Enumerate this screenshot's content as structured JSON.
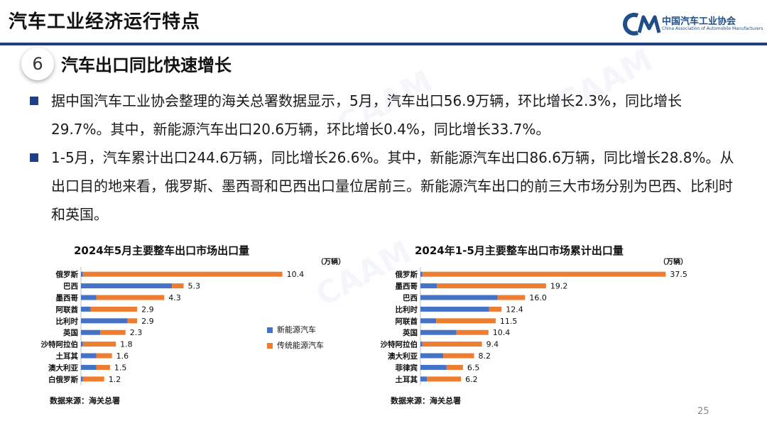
{
  "header": {
    "title": "汽车工业经济运行特点",
    "org_name_cn": "中国汽车工业协会",
    "org_name_en": "China Association of Automobile Manufacturers"
  },
  "section": {
    "number": "6",
    "title": "汽车出口同比快速增长"
  },
  "bullets": [
    "据中国汽车工业协会整理的海关总署数据显示，5月，汽车出口56.9万辆，环比增长2.3%，同比增长29.7%。其中，新能源汽车出口20.6万辆，环比增长0.4%，同比增长33.7%。",
    "1-5月，汽车累计出口244.6万辆，同比增长26.6%。其中，新能源汽车出口86.6万辆，同比增长28.8%。从出口目的地来看，俄罗斯、墨西哥和巴西出口量位居前三。新能源汽车出口的前三大市场分别为巴西、比利时和英国。"
  ],
  "legend": {
    "nev": "新能源汽车",
    "ice": "传统能源汽车"
  },
  "colors": {
    "nev": "#4472c4",
    "ice": "#ed7d31",
    "accent": "#1f3f86"
  },
  "page_number": "25",
  "chart_data": [
    {
      "type": "bar",
      "orientation": "horizontal",
      "stacked": true,
      "title": "2024年5月主要整车出口市场出口量",
      "unit": "（万辆）",
      "source": "数据来源：海关总署",
      "categories": [
        "俄罗斯",
        "巴西",
        "墨西哥",
        "阿联酋",
        "比利时",
        "英国",
        "沙特阿拉伯",
        "土耳其",
        "澳大利亚",
        "白俄罗斯"
      ],
      "totals": [
        10.4,
        5.3,
        4.3,
        2.9,
        2.9,
        2.3,
        1.8,
        1.6,
        1.5,
        1.2
      ],
      "series": [
        {
          "name": "新能源汽车",
          "values": [
            0.1,
            4.7,
            0.8,
            0.5,
            2.4,
            1.0,
            0.1,
            0.8,
            0.8,
            0.1
          ]
        },
        {
          "name": "传统能源汽车",
          "values": [
            10.3,
            0.6,
            3.5,
            2.4,
            0.5,
            1.3,
            1.7,
            0.8,
            0.7,
            1.1
          ]
        }
      ],
      "xlim": [
        0,
        11
      ]
    },
    {
      "type": "bar",
      "orientation": "horizontal",
      "stacked": true,
      "title": "2024年1-5月主要整车出口市场累计出口量",
      "unit": "（万辆）",
      "source": "数据来源：海关总署",
      "categories": [
        "俄罗斯",
        "墨西哥",
        "巴西",
        "比利时",
        "阿联酋",
        "英国",
        "沙特阿拉伯",
        "澳大利亚",
        "菲律宾",
        "土耳其"
      ],
      "totals": [
        37.5,
        19.2,
        16.0,
        12.4,
        11.5,
        10.4,
        9.4,
        8.2,
        6.5,
        6.2
      ],
      "series": [
        {
          "name": "新能源汽车",
          "values": [
            0.3,
            2.5,
            11.8,
            10.5,
            2.4,
            5.5,
            0.3,
            3.5,
            4.0,
            1.0
          ]
        },
        {
          "name": "传统能源汽车",
          "values": [
            37.2,
            16.7,
            4.2,
            1.9,
            9.1,
            4.9,
            9.1,
            4.7,
            2.5,
            5.2
          ]
        }
      ],
      "xlim": [
        0,
        38
      ]
    }
  ]
}
